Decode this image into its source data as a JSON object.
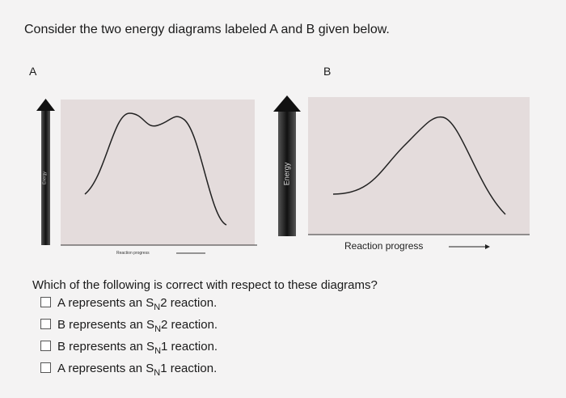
{
  "header": {
    "title": "Consider the two energy diagrams labeled A and B given below."
  },
  "diagrams": [
    {
      "label": "A",
      "y_axis": "Energy",
      "x_axis": "Reaction progress"
    },
    {
      "label": "B",
      "y_axis": "Energy",
      "x_axis": "Reaction progress"
    }
  ],
  "question": {
    "text": "Which of the following is correct with respect to these diagrams?",
    "options": [
      {
        "prefix": "A represents an S",
        "subscript": "N",
        "suffix": "2 reaction."
      },
      {
        "prefix": "B represents an S",
        "subscript": "N",
        "suffix": "2 reaction."
      },
      {
        "prefix": "B represents an S",
        "subscript": "N",
        "suffix": "1 reaction."
      },
      {
        "prefix": "A represents an S",
        "subscript": "N",
        "suffix": "1 reaction."
      }
    ]
  }
}
